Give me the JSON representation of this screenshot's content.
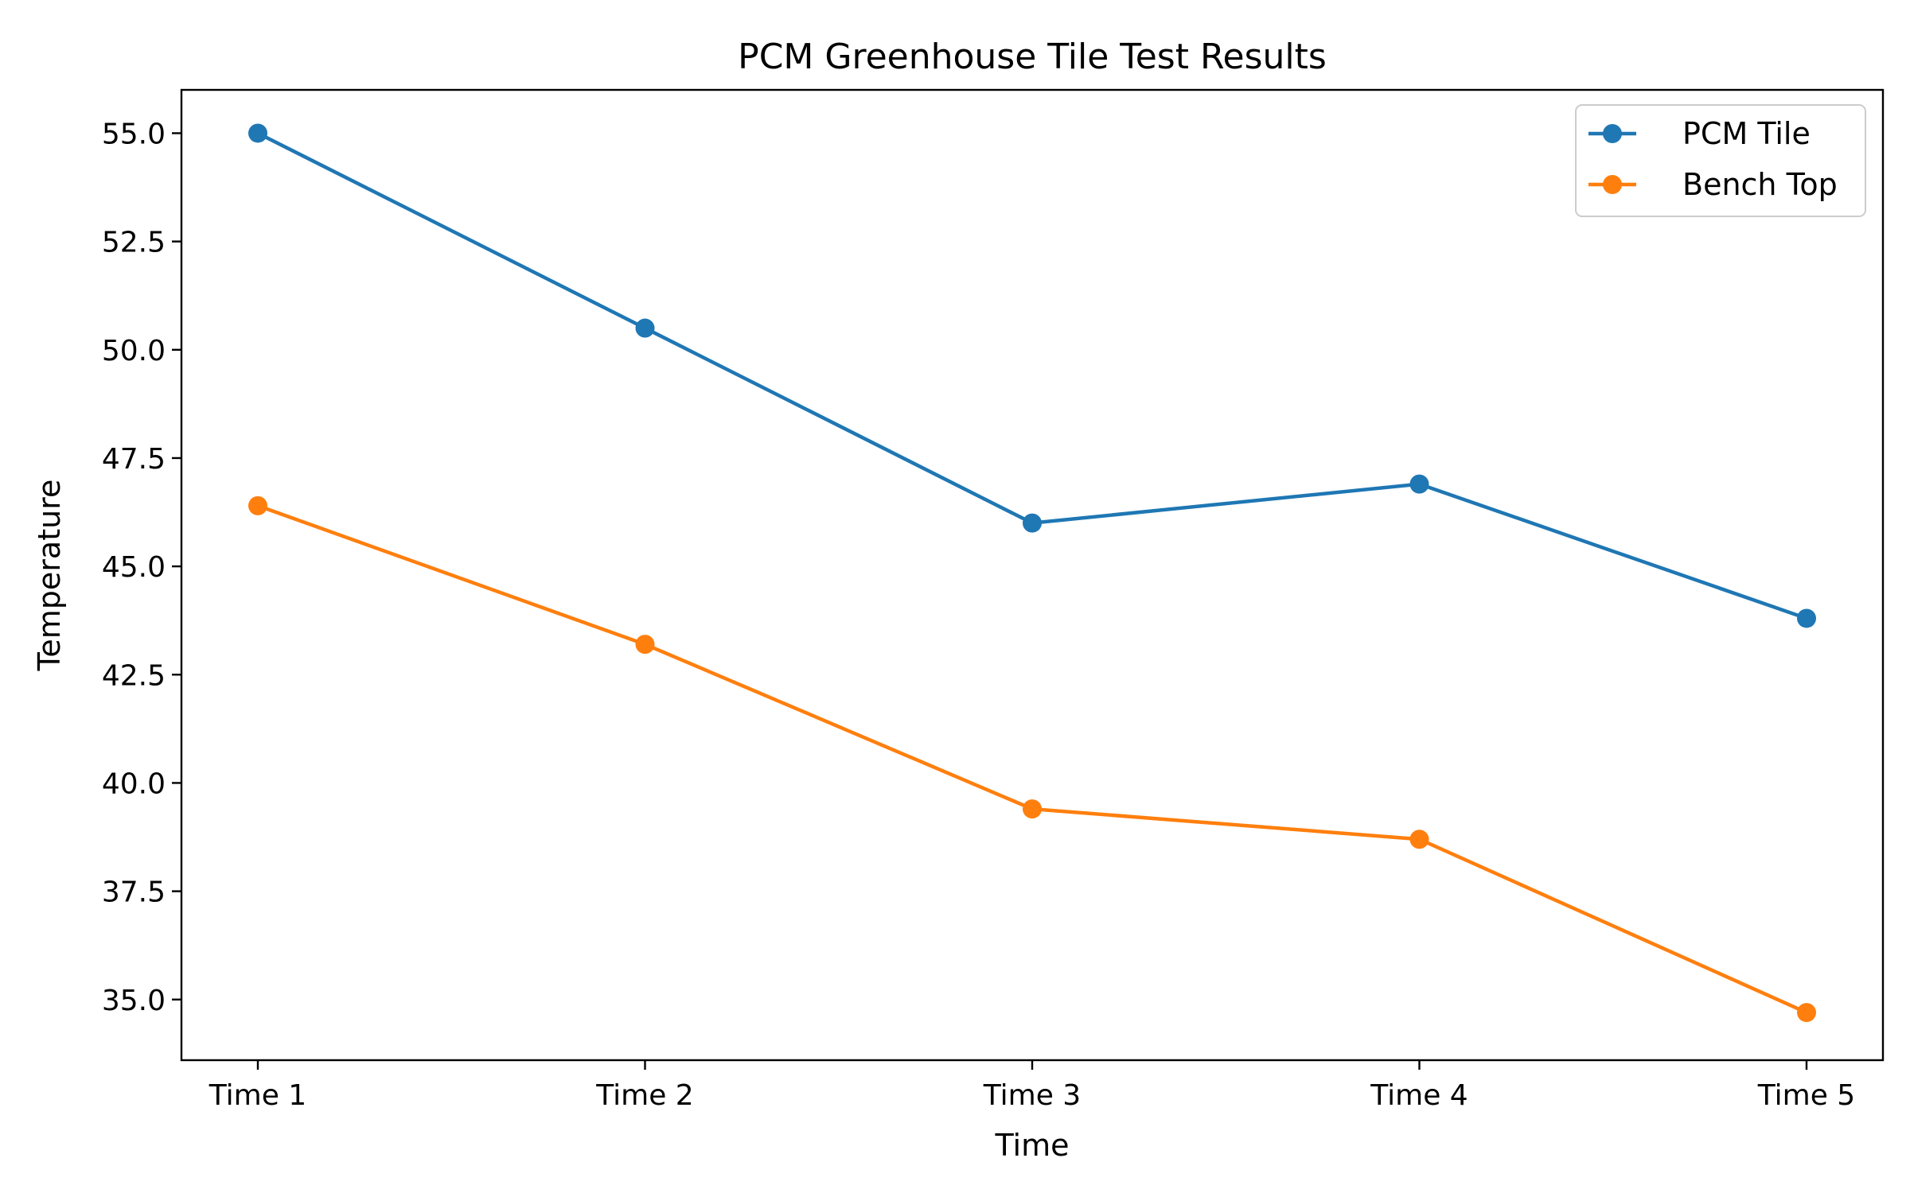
{
  "chart_data": {
    "type": "line",
    "title": "PCM Greenhouse Tile Test Results",
    "xlabel": "Time",
    "ylabel": "Temperature",
    "categories": [
      "Time 1",
      "Time 2",
      "Time 3",
      "Time 4",
      "Time 5"
    ],
    "ylim": [
      33.6,
      56.0
    ],
    "yticks": [
      35.0,
      37.5,
      40.0,
      42.5,
      45.0,
      47.5,
      50.0,
      52.5,
      55.0
    ],
    "ytick_labels": [
      "35.0",
      "37.5",
      "40.0",
      "42.5",
      "45.0",
      "47.5",
      "50.0",
      "52.5",
      "55.0"
    ],
    "grid": false,
    "legend_position": "top-right",
    "series": [
      {
        "name": "PCM Tile",
        "color": "#1f77b4",
        "marker": "circle",
        "values": [
          55.0,
          50.5,
          46.0,
          46.9,
          43.8
        ]
      },
      {
        "name": "Bench Top",
        "color": "#ff7f0e",
        "marker": "circle",
        "values": [
          46.4,
          43.2,
          39.4,
          38.7,
          34.7
        ]
      }
    ]
  }
}
